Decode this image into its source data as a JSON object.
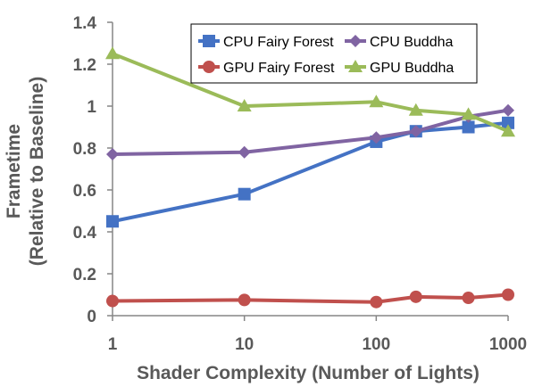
{
  "chart_data": {
    "type": "line",
    "title": "",
    "xlabel": "Shader Complexity (Number of Lights)",
    "ylabel": [
      "Frametime",
      "(Relative to Baseline)"
    ],
    "xscale": "log",
    "xlim": [
      1,
      1000
    ],
    "ylim": [
      0,
      1.4
    ],
    "xticks": [
      "1",
      "10",
      "100",
      "1000"
    ],
    "yticks": [
      "0",
      "0.2",
      "0.4",
      "0.6",
      "0.8",
      "1",
      "1.2",
      "1.4"
    ],
    "grid": false,
    "legend_position": "top-right",
    "x": [
      1,
      10,
      100,
      200,
      500,
      1000
    ],
    "series": [
      {
        "name": "CPU Fairy Forest",
        "color": "#4472C4",
        "marker": "square",
        "values": [
          0.45,
          0.58,
          0.83,
          0.88,
          0.9,
          0.92
        ]
      },
      {
        "name": "CPU Buddha",
        "color": "#8064A2",
        "marker": "diamond",
        "values": [
          0.77,
          0.78,
          0.85,
          0.88,
          0.95,
          0.98
        ]
      },
      {
        "name": "GPU Fairy Forest",
        "color": "#C0504D",
        "marker": "circle",
        "values": [
          0.07,
          0.075,
          0.065,
          0.09,
          0.085,
          0.1
        ]
      },
      {
        "name": "GPU Buddha",
        "color": "#9BBB59",
        "marker": "triangle",
        "values": [
          1.25,
          1.0,
          1.02,
          0.98,
          0.96,
          0.88
        ]
      }
    ]
  }
}
